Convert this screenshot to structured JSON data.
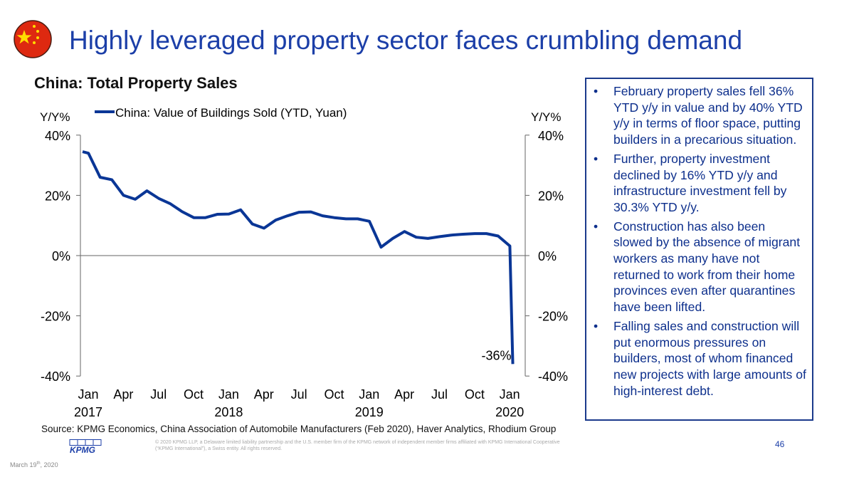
{
  "header": {
    "title": "Highly leveraged property sector faces crumbling demand",
    "flag_icon": "china-flag-icon"
  },
  "chart_data": {
    "type": "line",
    "title": "China: Total Property Sales",
    "ylabel_left": "Y/Y%",
    "ylabel_right": "Y/Y%",
    "ylim": [
      -40,
      40
    ],
    "yticks": [
      "40%",
      "20%",
      "0%",
      "-20%",
      "-40%"
    ],
    "yticks_right": [
      "40%",
      "20%",
      "0%",
      "-20%",
      "-40%"
    ],
    "ytick_values": [
      40,
      20,
      0,
      -20,
      -40
    ],
    "xticks": [
      {
        "m": 0,
        "label": "Jan",
        "year": "2017"
      },
      {
        "m": 3,
        "label": "Apr"
      },
      {
        "m": 6,
        "label": "Jul"
      },
      {
        "m": 9,
        "label": "Oct"
      },
      {
        "m": 12,
        "label": "Jan",
        "year": "2018"
      },
      {
        "m": 15,
        "label": "Apr"
      },
      {
        "m": 18,
        "label": "Jul"
      },
      {
        "m": 21,
        "label": "Oct"
      },
      {
        "m": 24,
        "label": "Jan",
        "year": "2019"
      },
      {
        "m": 27,
        "label": "Apr"
      },
      {
        "m": 30,
        "label": "Jul"
      },
      {
        "m": 33,
        "label": "Oct"
      },
      {
        "m": 36,
        "label": "Jan",
        "year": "2020"
      }
    ],
    "x_unit": "months since Jan 2017",
    "series": [
      {
        "name": "China: Value of Buildings Sold (YTD, Yuan)",
        "color": "#0a3696",
        "x": [
          0,
          0.5,
          1.5,
          2.5,
          3.5,
          4.5,
          5.5,
          6.5,
          7.5,
          8.5,
          9.5,
          10.5,
          11.5,
          12.5,
          13.5,
          14.5,
          15.5,
          16.5,
          17.5,
          18.5,
          19.5,
          20.5,
          21.5,
          22.5,
          23.5,
          24.5,
          25.5,
          26.5,
          27.5,
          28.5,
          29.5,
          30.5,
          31.5,
          32.5,
          33.5,
          34.5,
          35.5,
          36.5,
          36.75
        ],
        "values": [
          34.5,
          34,
          26,
          25.2,
          20,
          18.7,
          21.5,
          19,
          17.2,
          14.6,
          12.6,
          12.6,
          13.7,
          13.8,
          15.2,
          10.5,
          9.1,
          11.8,
          13.2,
          14.4,
          14.5,
          13.2,
          12.6,
          12.2,
          12.2,
          11.4,
          2.8,
          5.7,
          8,
          6.1,
          5.7,
          6.3,
          6.8,
          7.1,
          7.3,
          7.3,
          6.5,
          3.2,
          -36
        ]
      }
    ],
    "annotations": [
      {
        "text": "-36%",
        "x": 36.75,
        "y": -36
      }
    ],
    "legend": "top"
  },
  "bullets": [
    "February property sales fell 36% YTD y/y in value and by 40% YTD y/y in terms of floor space, putting builders in a precarious situation.",
    "Further, property investment declined by 16% YTD y/y and infrastructure investment fell by 30.3% YTD y/y.",
    "Construction has also been slowed by the absence of migrant workers as many have not returned to work from their home provinces even after quarantines have been lifted.",
    "Falling sales and construction will put enormous pressures on builders, most of whom financed new projects with large amounts of high-interest debt."
  ],
  "bullet_char": "•",
  "footer": {
    "source": "Source: KPMG Economics, China Association of Automobile Manufacturers (Feb 2020), Haver Analytics, Rhodium Group",
    "logo": "KPMG",
    "legal": "© 2020 KPMG LLP, a Delaware limited liability partnership and the U.S. member firm of the KPMG network of independent member firms affiliated with KPMG International Cooperative (“KPMG International”), a Swiss entity. All rights reserved.",
    "page_number": "46",
    "date_main": "March 19",
    "date_sup": "th",
    "date_year": ", 2020"
  }
}
